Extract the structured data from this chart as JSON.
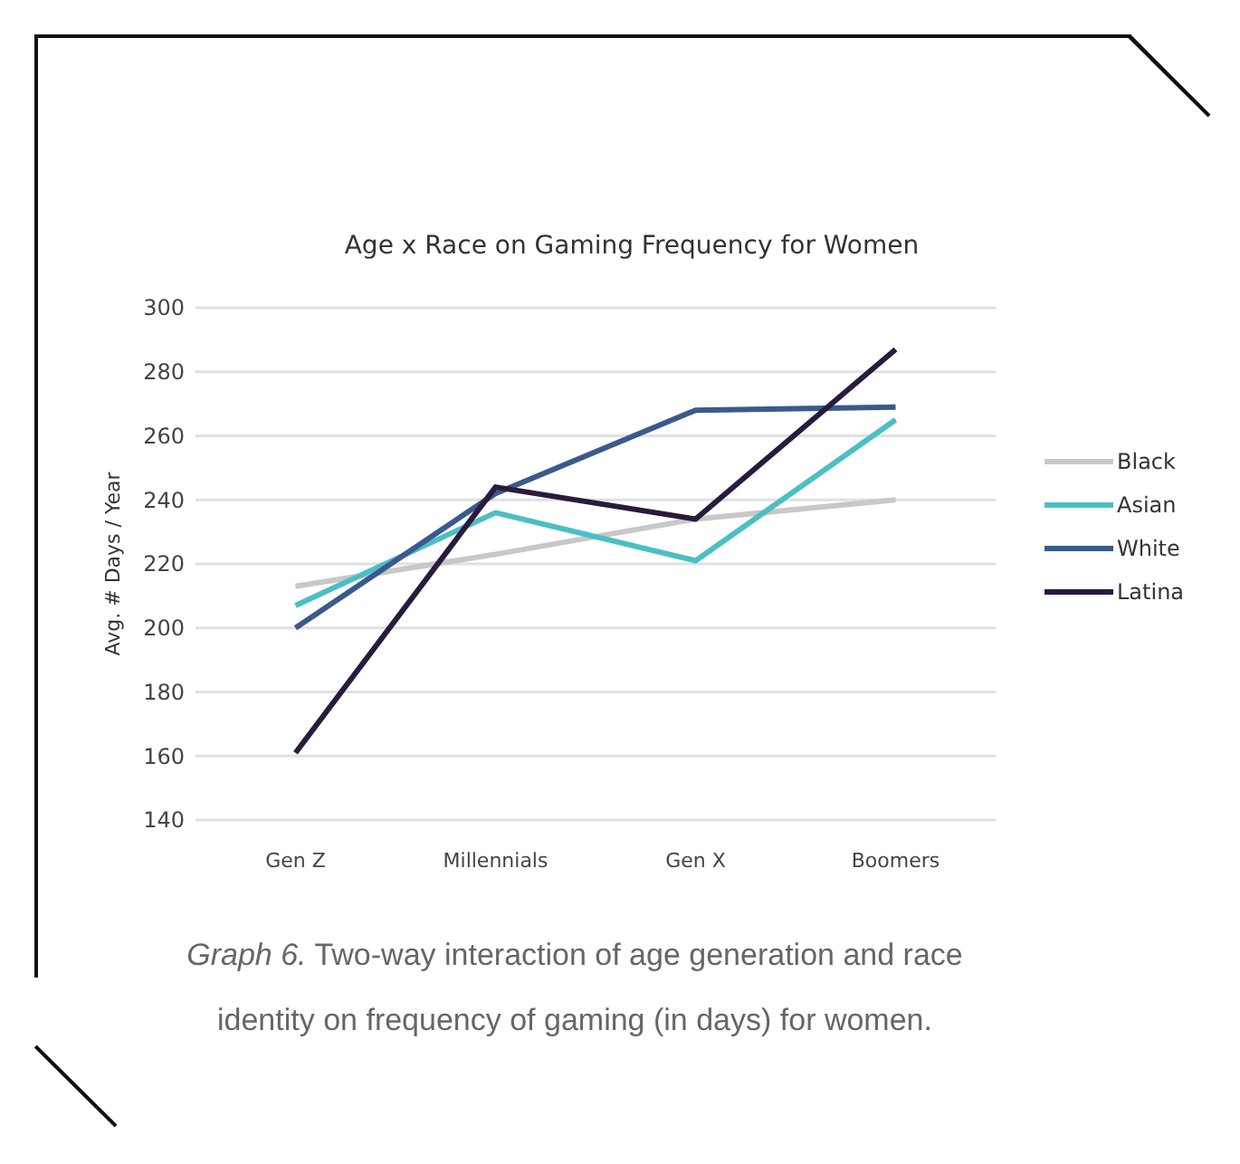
{
  "chart_data": {
    "type": "line",
    "title": "Age x Race on Gaming Frequency for Women",
    "ylabel": "Avg. # Days / Year",
    "categories": [
      "Gen Z",
      "Millennials",
      "Gen X",
      "Boomers"
    ],
    "series": [
      {
        "name": "Black",
        "color": "#c8c8c8",
        "values": [
          213,
          223,
          234,
          240
        ]
      },
      {
        "name": "Asian",
        "color": "#4bbfc4",
        "values": [
          207,
          236,
          221,
          265
        ]
      },
      {
        "name": "White",
        "color": "#3a5a8c",
        "values": [
          200,
          242,
          268,
          269
        ]
      },
      {
        "name": "Latina",
        "color": "#2a1a3e",
        "values": [
          161,
          244,
          234,
          287
        ]
      }
    ],
    "ylim": [
      140,
      300
    ],
    "yticks": [
      140,
      160,
      180,
      200,
      220,
      240,
      260,
      280,
      300
    ],
    "grid": "y",
    "legend": "right",
    "marker": "none",
    "line_style": "solid",
    "annotations": [
      "Graph 6.",
      "Two-way interaction of age generation and race identity on frequency of gaming (in days) for women."
    ]
  }
}
